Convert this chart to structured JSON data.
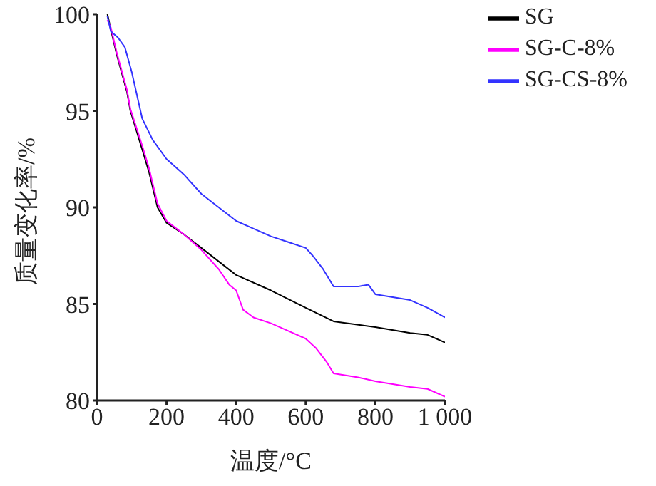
{
  "chart_data": {
    "type": "line",
    "xlabel": "温度/°C",
    "ylabel": "质量变化率/%",
    "xlim": [
      0,
      1000
    ],
    "xticks": [
      0,
      200,
      400,
      600,
      800,
      {
        "value": 1000,
        "label": "1 000"
      }
    ],
    "ylim": [
      80,
      100
    ],
    "yticks": [
      80,
      85,
      90,
      95,
      100
    ],
    "grid": false,
    "legend": "top right",
    "marker": "none",
    "line_style": "solid",
    "series": [
      {
        "name": "SG",
        "color": "#000000",
        "x": [
          30,
          40,
          57,
          86,
          96,
          130,
          150,
          174,
          200,
          250,
          300,
          400,
          500,
          600,
          680,
          800,
          900,
          950,
          1000
        ],
        "values": [
          100,
          99.2,
          97.9,
          96.0,
          95,
          93.0,
          91.8,
          90,
          89.2,
          88.6,
          87.9,
          86.5,
          85.7,
          84.8,
          84.1,
          83.8,
          83.5,
          83.4,
          83.0
        ]
      },
      {
        "name": "SG-C-8%",
        "color": "#ff00ff",
        "x": [
          30,
          40,
          57,
          86,
          96,
          130,
          150,
          174,
          200,
          250,
          300,
          350,
          380,
          400,
          420,
          450,
          500,
          550,
          600,
          630,
          660,
          680,
          750,
          800,
          900,
          950,
          1000
        ],
        "values": [
          99.7,
          99.3,
          98.0,
          96.1,
          95.1,
          93.2,
          92.0,
          90.2,
          89.3,
          88.6,
          87.8,
          86.8,
          86.0,
          85.7,
          84.7,
          84.3,
          84.0,
          83.6,
          83.2,
          82.7,
          82.0,
          81.4,
          81.2,
          81.0,
          80.7,
          80.6,
          80.2
        ]
      },
      {
        "name": "SG-CS-8%",
        "color": "#3333ff",
        "x": [
          30,
          40,
          60,
          80,
          100,
          130,
          160,
          200,
          250,
          300,
          350,
          400,
          450,
          500,
          550,
          600,
          620,
          650,
          680,
          750,
          780,
          800,
          900,
          950,
          1000
        ],
        "values": [
          99.9,
          99.1,
          98.8,
          98.3,
          97.0,
          94.6,
          93.5,
          92.5,
          91.7,
          90.7,
          90.0,
          89.3,
          88.9,
          88.5,
          88.2,
          87.9,
          87.5,
          86.8,
          85.9,
          85.9,
          86.0,
          85.5,
          85.2,
          84.8,
          84.3
        ]
      }
    ]
  }
}
